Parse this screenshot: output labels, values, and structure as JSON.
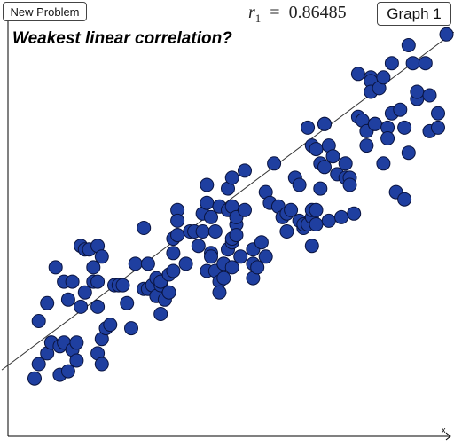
{
  "toolbar": {
    "new_problem_label": "New Problem",
    "graph_label": "Graph 1"
  },
  "question": "Weakest linear correlation?",
  "readout": {
    "r_symbol": "r",
    "r_subscript": "1",
    "equals": "=",
    "r_value": "0.86485"
  },
  "colors": {
    "point_fill": "#1f3fa0",
    "point_stroke": "#0a1440",
    "line": "#333333",
    "axis": "#000000"
  },
  "chart_data": {
    "type": "scatter",
    "xlabel": "x",
    "ylabel": "",
    "grid": false,
    "xlim": [
      0,
      100
    ],
    "ylim": [
      0,
      100
    ],
    "regression_line": {
      "slope": 0.876,
      "intercept": 13.7
    },
    "points": [
      [
        4,
        8
      ],
      [
        5,
        24
      ],
      [
        5,
        12
      ],
      [
        7,
        29
      ],
      [
        7,
        15
      ],
      [
        8,
        18
      ],
      [
        8,
        18
      ],
      [
        9,
        39
      ],
      [
        10,
        9
      ],
      [
        10,
        17
      ],
      [
        11,
        35
      ],
      [
        11,
        18
      ],
      [
        12,
        10
      ],
      [
        12,
        30
      ],
      [
        13,
        35
      ],
      [
        13,
        16
      ],
      [
        14,
        13
      ],
      [
        14,
        18
      ],
      [
        15,
        28
      ],
      [
        15,
        45
      ],
      [
        16,
        44
      ],
      [
        16,
        32
      ],
      [
        17,
        44
      ],
      [
        18,
        39
      ],
      [
        18,
        35
      ],
      [
        19,
        28
      ],
      [
        19,
        35
      ],
      [
        19,
        45
      ],
      [
        19,
        15
      ],
      [
        20,
        42
      ],
      [
        20,
        19
      ],
      [
        20,
        12
      ],
      [
        21,
        22
      ],
      [
        22,
        23
      ],
      [
        23,
        34
      ],
      [
        24,
        34
      ],
      [
        25,
        34
      ],
      [
        26,
        29
      ],
      [
        27,
        22
      ],
      [
        28,
        40
      ],
      [
        30,
        33
      ],
      [
        30,
        50
      ],
      [
        31,
        40
      ],
      [
        31,
        33
      ],
      [
        32,
        34
      ],
      [
        33,
        36
      ],
      [
        33,
        31
      ],
      [
        34,
        34
      ],
      [
        34,
        26
      ],
      [
        34,
        35
      ],
      [
        35,
        30
      ],
      [
        36,
        32
      ],
      [
        36,
        37
      ],
      [
        37,
        38
      ],
      [
        37,
        47
      ],
      [
        37,
        43
      ],
      [
        38,
        55
      ],
      [
        38,
        48
      ],
      [
        38,
        48
      ],
      [
        38,
        52
      ],
      [
        40,
        40
      ],
      [
        41,
        49
      ],
      [
        42,
        49
      ],
      [
        43,
        45
      ],
      [
        44,
        54
      ],
      [
        44,
        49
      ],
      [
        45,
        57
      ],
      [
        45,
        62
      ],
      [
        45,
        38
      ],
      [
        46,
        43
      ],
      [
        46,
        42
      ],
      [
        46,
        53
      ],
      [
        47,
        38
      ],
      [
        47,
        49
      ],
      [
        48,
        56
      ],
      [
        48,
        35
      ],
      [
        48,
        32
      ],
      [
        49,
        36
      ],
      [
        49,
        40
      ],
      [
        49,
        40
      ],
      [
        50,
        44
      ],
      [
        50,
        55
      ],
      [
        50,
        61
      ],
      [
        51,
        64
      ],
      [
        51,
        56
      ],
      [
        51,
        46
      ],
      [
        51,
        39
      ],
      [
        51,
        47
      ],
      [
        52,
        51
      ],
      [
        52,
        53
      ],
      [
        52,
        48
      ],
      [
        53,
        42
      ],
      [
        54,
        55
      ],
      [
        54,
        66
      ],
      [
        56,
        36
      ],
      [
        56,
        40
      ],
      [
        56,
        44
      ],
      [
        57,
        39
      ],
      [
        58,
        46
      ],
      [
        59,
        42
      ],
      [
        59,
        60
      ],
      [
        60,
        57
      ],
      [
        61,
        68
      ],
      [
        62,
        56
      ],
      [
        63,
        53
      ],
      [
        64,
        49
      ],
      [
        64,
        54
      ],
      [
        65,
        55
      ],
      [
        66,
        64
      ],
      [
        67,
        62
      ],
      [
        67,
        52
      ],
      [
        68,
        50
      ],
      [
        68,
        51
      ],
      [
        69,
        51
      ],
      [
        69,
        78
      ],
      [
        70,
        53
      ],
      [
        70,
        73
      ],
      [
        70,
        55
      ],
      [
        70,
        45
      ],
      [
        71,
        51
      ],
      [
        71,
        72
      ],
      [
        71,
        55
      ],
      [
        72,
        61
      ],
      [
        72,
        68
      ],
      [
        73,
        67
      ],
      [
        73,
        79
      ],
      [
        73,
        79
      ],
      [
        74,
        73
      ],
      [
        74,
        52
      ],
      [
        75,
        70
      ],
      [
        76,
        65
      ],
      [
        77,
        53
      ],
      [
        78,
        64
      ],
      [
        78,
        68
      ],
      [
        79,
        64
      ],
      [
        79,
        62
      ],
      [
        80,
        54
      ],
      [
        81,
        81
      ],
      [
        81,
        93
      ],
      [
        82,
        80
      ],
      [
        83,
        77
      ],
      [
        83,
        73
      ],
      [
        84,
        92
      ],
      [
        84,
        91
      ],
      [
        84,
        88
      ],
      [
        85,
        79
      ],
      [
        85,
        79
      ],
      [
        86,
        89
      ],
      [
        87,
        92
      ],
      [
        87,
        68
      ],
      [
        88,
        78
      ],
      [
        88,
        75
      ],
      [
        89,
        82
      ],
      [
        89,
        96
      ],
      [
        90,
        60
      ],
      [
        91,
        83
      ],
      [
        92,
        78
      ],
      [
        92,
        58
      ],
      [
        93,
        71
      ],
      [
        93,
        101
      ],
      [
        94,
        96
      ],
      [
        95,
        86
      ],
      [
        95,
        88
      ],
      [
        97,
        96
      ],
      [
        98,
        77
      ],
      [
        98,
        87
      ],
      [
        100,
        78
      ],
      [
        100,
        82
      ],
      [
        102,
        104
      ]
    ]
  }
}
